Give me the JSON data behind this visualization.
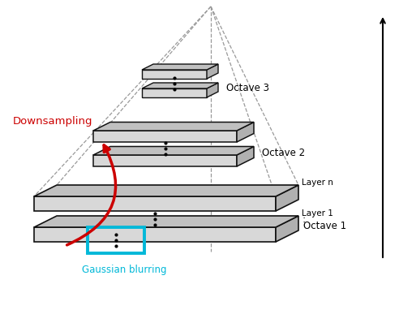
{
  "bg_color": "#ffffff",
  "octave_labels": [
    "Octave 1",
    "Octave 2",
    "Octave 3"
  ],
  "layer_labels_n": "Layer n",
  "layer_labels_1": "Layer 1",
  "layer_dots": ":",
  "downsampling_label": "Downsampling",
  "gaussian_label": "Gaussian blurring",
  "face_color": "#d8d8d8",
  "side_color": "#b0b0b0",
  "top_color": "#c0c0c0",
  "edge_color": "#111111",
  "cyan_color": "#00b8d8",
  "red_color": "#cc0000",
  "dash_color": "#999999",
  "arrow_scale": 100
}
